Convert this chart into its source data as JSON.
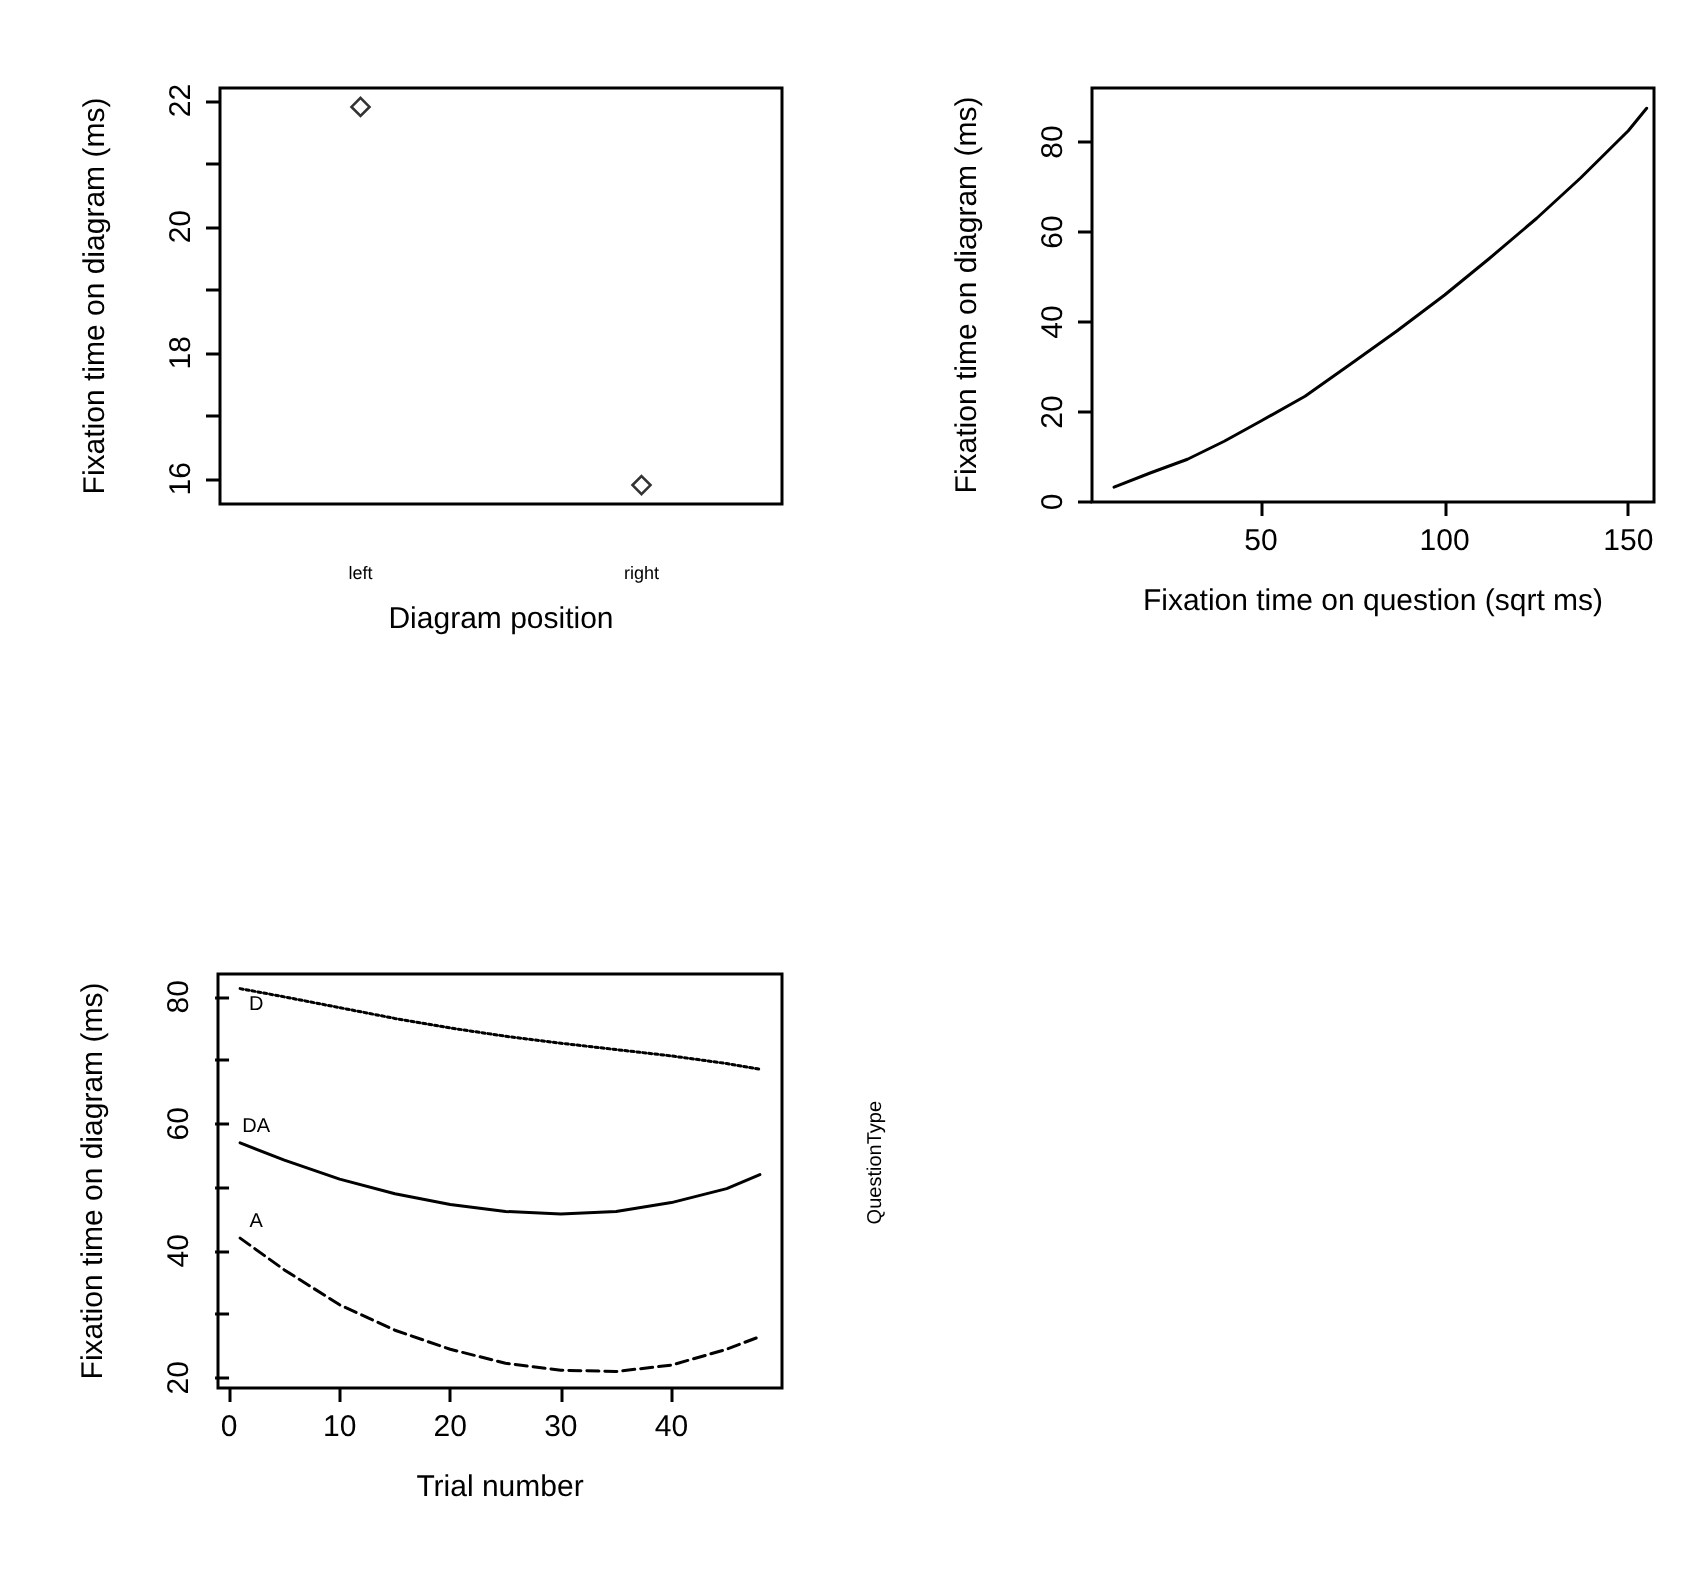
{
  "chart_data": [
    {
      "type": "scatter",
      "ylabel": "Fixation time on diagram (ms)",
      "xlabel": "Diagram position",
      "categories": [
        "left",
        "right"
      ],
      "values": [
        21.9,
        15.9
      ],
      "color": "#000000",
      "marker": "diamond",
      "ylim": [
        15.6,
        22.2
      ],
      "yticks": [
        16,
        {
          "value": 17,
          "label": null
        },
        18,
        {
          "value": 19,
          "label": null
        },
        20,
        {
          "value": 21,
          "label": null
        },
        22
      ],
      "grid": false,
      "legend": false
    },
    {
      "type": "line",
      "ylabel": "Fixation time on diagram (ms)",
      "xlabel": "Fixation time on question (sqrt ms)",
      "x": [
        10,
        20,
        30,
        40,
        50,
        62,
        75,
        87,
        100,
        112,
        125,
        137,
        150,
        155
      ],
      "values": [
        3.3,
        6.5,
        9.5,
        13.5,
        18,
        23.5,
        31,
        38,
        46,
        54,
        63,
        72,
        82.5,
        87.5
      ],
      "color": "#000000",
      "marker": "none",
      "line_style": "solid",
      "xlim": [
        4,
        157
      ],
      "ylim": [
        0,
        92
      ],
      "xticks": [
        50,
        100,
        150
      ],
      "yticks": [
        0,
        20,
        40,
        60,
        80
      ],
      "grid": false,
      "legend": false
    },
    {
      "type": "line",
      "ylabel": "Fixation time on diagram (ms)",
      "xlabel": "Trial number",
      "x": [
        1,
        5,
        10,
        15,
        20,
        25,
        30,
        35,
        40,
        45,
        48
      ],
      "series": [
        {
          "name": "D",
          "color": "#000000",
          "line_style": "dotted",
          "values": [
            81.3,
            80,
            78.3,
            76.6,
            75.1,
            73.8,
            72.7,
            71.7,
            70.7,
            69.5,
            68.6
          ]
        },
        {
          "name": "DA",
          "color": "#000000",
          "line_style": "solid",
          "values": [
            57,
            54.3,
            51.3,
            49,
            47.3,
            46.2,
            45.8,
            46.2,
            47.6,
            49.8,
            52
          ]
        },
        {
          "name": "A",
          "color": "#000000",
          "line_style": "dashed",
          "values": [
            42,
            37,
            31.5,
            27.5,
            24.5,
            22.3,
            21.2,
            21,
            22,
            24.5,
            26.5
          ]
        }
      ],
      "annotations": [
        "QuestionType"
      ],
      "marker": "none",
      "xlim": [
        -1,
        50
      ],
      "ylim": [
        18.4,
        83.6
      ],
      "xticks": [
        0,
        10,
        20,
        30,
        40
      ],
      "yticks": [
        20,
        {
          "value": 30,
          "label": null
        },
        40,
        {
          "value": 50,
          "label": null
        },
        60,
        {
          "value": 70,
          "label": null
        },
        80
      ],
      "grid": false,
      "legend": false
    }
  ]
}
